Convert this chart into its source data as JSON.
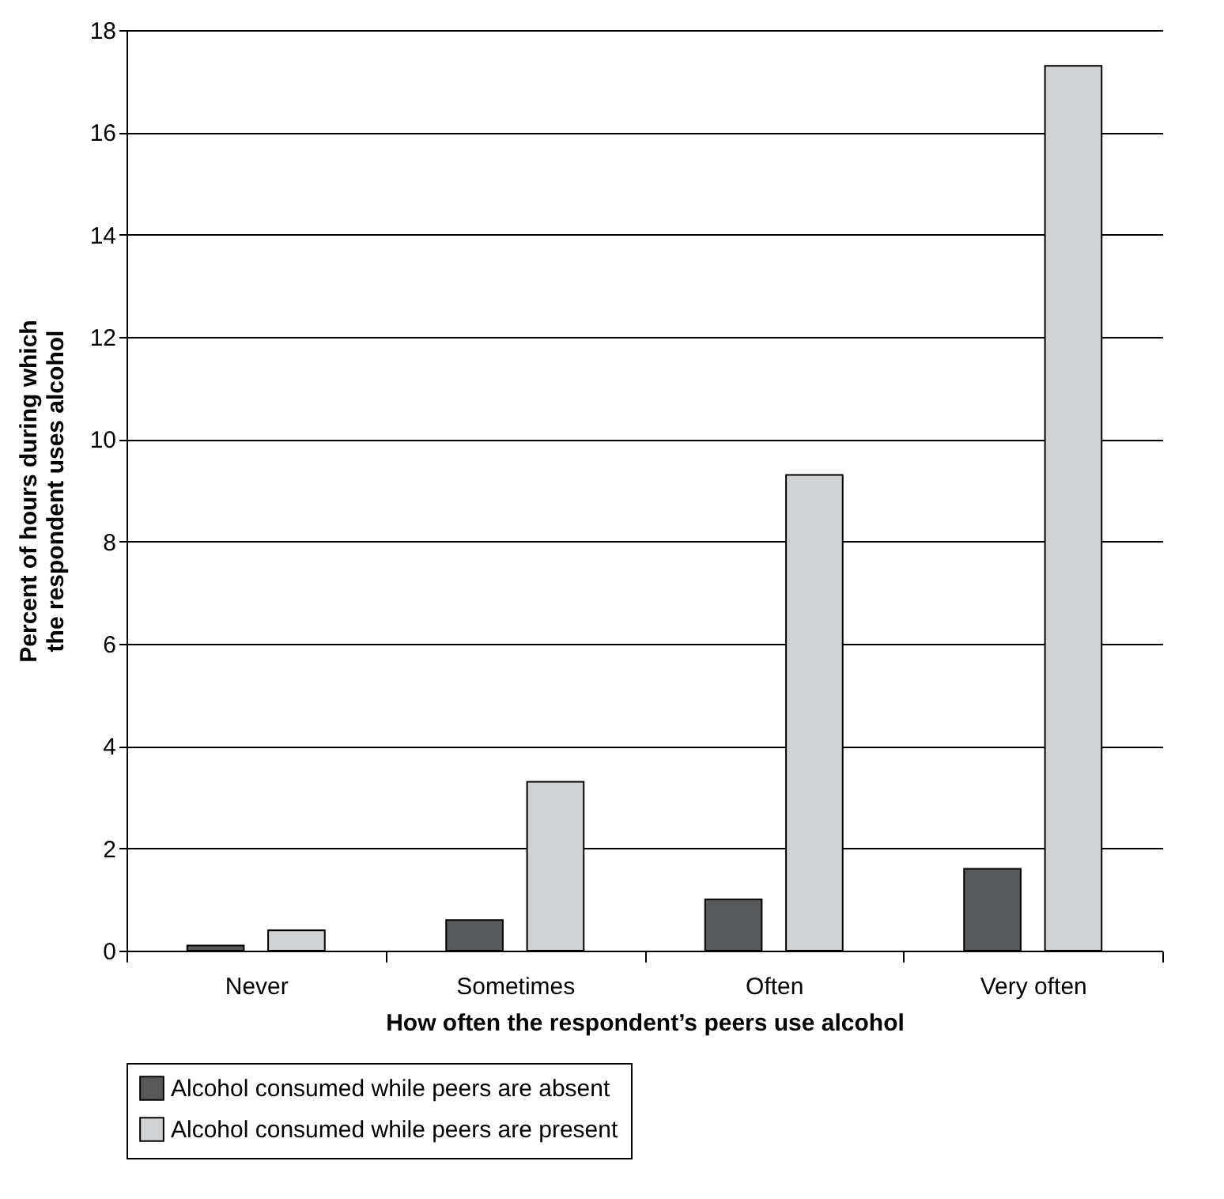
{
  "chart_data": {
    "type": "bar",
    "xlabel": "How often the respondent’s peers use alcohol",
    "ylabel": "Percent of hours during which the respondent uses alcohol",
    "categories": [
      "Never",
      "Sometimes",
      "Often",
      "Very often"
    ],
    "series": [
      {
        "name": "Alcohol consumed while peers are absent",
        "color": "#58595b",
        "values": [
          0.1,
          0.6,
          1.0,
          1.6
        ]
      },
      {
        "name": "Alcohol consumed while peers are present",
        "color": "#d1d2d4",
        "values": [
          0.4,
          3.3,
          9.3,
          17.3
        ]
      }
    ],
    "ylim": [
      0,
      18
    ],
    "yticks": [
      0,
      2,
      4,
      6,
      8,
      10,
      12,
      14,
      16,
      18
    ],
    "grid": "y",
    "legend": "bottom"
  }
}
